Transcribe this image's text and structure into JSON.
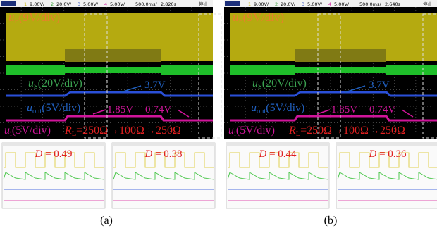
{
  "panels": [
    {
      "status": [
        "1",
        "9.00V/",
        "2",
        "20.0V/",
        "3",
        "5.00V/",
        "4",
        "5.00V/",
        "500.0ms/",
        "2.820s",
        "停止"
      ],
      "labels": {
        "u_f": {
          "sym": "u",
          "sub": "F",
          "rest": "(9V/div)"
        },
        "u_s": {
          "sym": "u",
          "sub": "S",
          "rest": "(20V/div)"
        },
        "u_out": {
          "sym": "u",
          "sub": "out",
          "rest": "(5V/div)"
        },
        "u_i": {
          "sym": "u",
          "sub": "i",
          "rest": "(5V/div)"
        },
        "r_l": {
          "sym": "R",
          "sub": "L",
          "rest": "=250Ω→100Ω→250Ω"
        },
        "v1": "3.7V",
        "v2": "1.85V",
        "v3": "0.74V"
      },
      "zooms": [
        {
          "sym": "D",
          "text": " = 0.49"
        },
        {
          "sym": "D",
          "text": " = 0.38"
        }
      ],
      "caption": "(a)"
    },
    {
      "status": [
        "1",
        "9.00V/",
        "2",
        "20.0V/",
        "3",
        "5.00V/",
        "4",
        "5.00V/",
        "500.0ms/",
        "2.640s",
        "停止"
      ],
      "labels": {
        "u_f": {
          "sym": "u",
          "sub": "F",
          "rest": "(9V/div)"
        },
        "u_s": {
          "sym": "u",
          "sub": "S",
          "rest": "(20V/div)"
        },
        "u_out": {
          "sym": "u",
          "sub": "out",
          "rest": "(5V/div)"
        },
        "u_i": {
          "sym": "u",
          "sub": "i",
          "rest": "(5V/div)"
        },
        "r_l": {
          "sym": "R",
          "sub": "L",
          "rest": "=250Ω→100Ω→250Ω"
        },
        "v1": "3.7V",
        "v2": "1.85V",
        "v3": "0.74V"
      },
      "zooms": [
        {
          "sym": "D",
          "text": " = 0.44"
        },
        {
          "sym": "D",
          "text": " = 0.36"
        }
      ],
      "caption": "(b)"
    }
  ]
}
